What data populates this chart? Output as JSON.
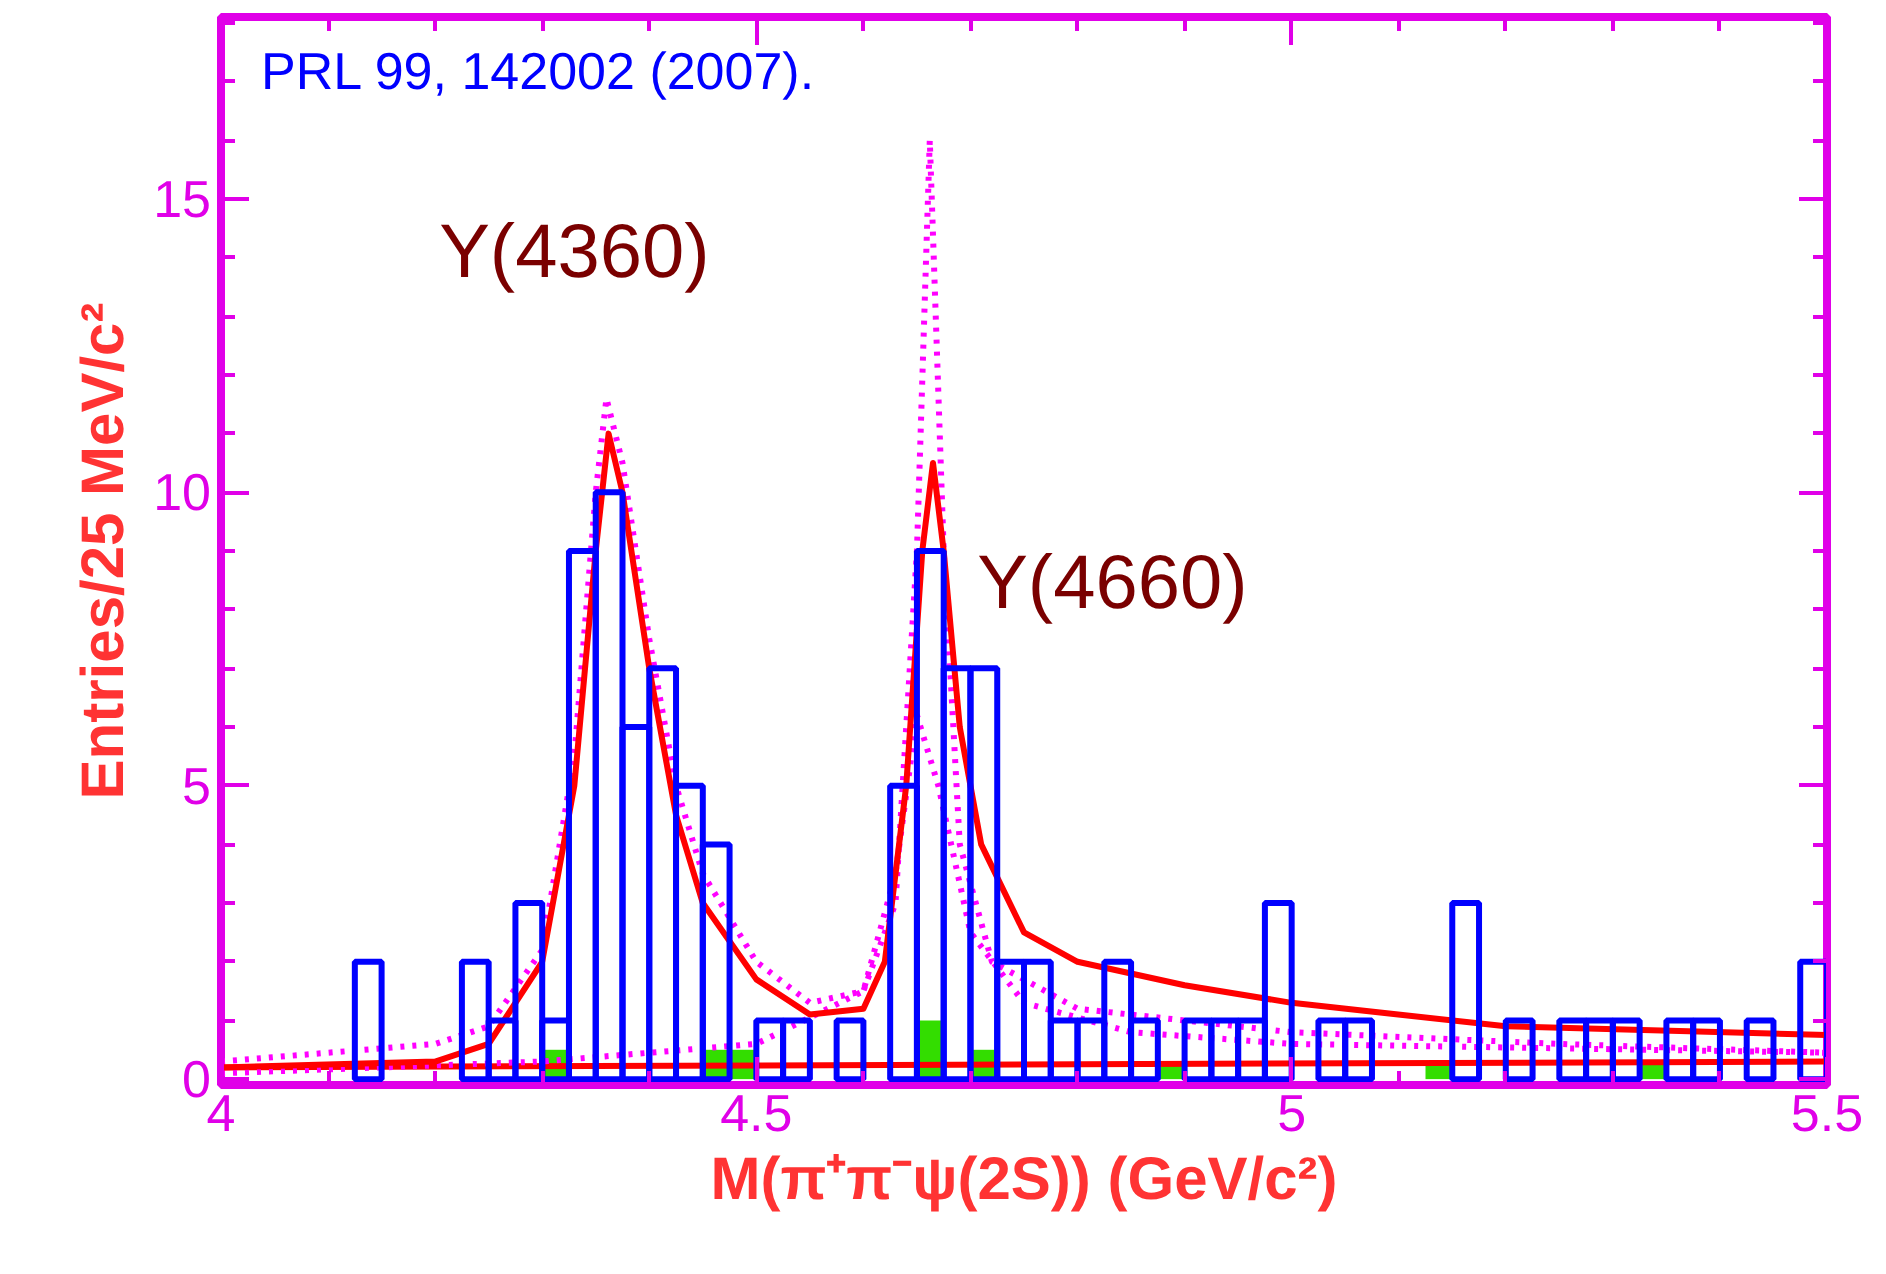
{
  "chart_data": {
    "type": "histogram",
    "xlabel": "M(π⁺π⁻ψ(2S)) (GeV/c²)",
    "ylabel": "Entries/25 MeV/c²",
    "bins": [
      4.0,
      4.025,
      4.05,
      4.075,
      4.1,
      4.125,
      4.15,
      4.175,
      4.2,
      4.225,
      4.25,
      4.275,
      4.3,
      4.325,
      4.35,
      4.375,
      4.4,
      4.425,
      4.45,
      4.475,
      4.5,
      4.525,
      4.55,
      4.575,
      4.6,
      4.625,
      4.65,
      4.675,
      4.7,
      4.725,
      4.75,
      4.775,
      4.8,
      4.825,
      4.85,
      4.875,
      4.9,
      4.925,
      4.95,
      4.975,
      5.0,
      5.025,
      5.05,
      5.075,
      5.1,
      5.125,
      5.15,
      5.175,
      5.2,
      5.225,
      5.25,
      5.275,
      5.3,
      5.325,
      5.35,
      5.375,
      5.4,
      5.425,
      5.45,
      5.475,
      5.5
    ],
    "series": [
      {
        "color": "#0000ff",
        "values": [
          0,
          0,
          0,
          0,
          0,
          2,
          0,
          0,
          0,
          2,
          1,
          3,
          1,
          9,
          10,
          6,
          7,
          5,
          4,
          0,
          1,
          1,
          0,
          1,
          0,
          5,
          9,
          7,
          7,
          2,
          2,
          1,
          1,
          2,
          1,
          0,
          1,
          1,
          1,
          3,
          0,
          1,
          1,
          0,
          0,
          0,
          3,
          0,
          1,
          0,
          1,
          1,
          1,
          0,
          1,
          1,
          0,
          1,
          0,
          2
        ]
      },
      {
        "color": "#33dd00",
        "values": [
          0,
          0,
          0,
          0,
          0,
          0,
          0,
          0,
          0,
          0,
          0,
          0,
          0.5,
          0,
          0,
          0,
          0,
          0,
          0.5,
          0.5,
          0,
          0,
          0,
          0,
          0,
          0,
          1,
          0,
          0.5,
          0,
          0,
          0,
          0,
          0,
          0,
          0.3,
          0,
          null,
          null,
          0,
          0,
          0,
          0,
          0,
          0,
          0.3,
          0,
          0,
          null,
          0,
          0,
          0,
          null,
          0.3,
          0,
          0,
          0,
          0,
          0,
          0
        ]
      },
      {
        "type": "line",
        "color": "#ff0000",
        "line_style": "solid",
        "x": [
          4.0,
          4.0001,
          5.5
        ],
        "values": [
          0.2,
          0.2,
          0.3
        ]
      },
      {
        "type": "line",
        "color": "#ff00ff",
        "line_style": "dotted",
        "x": [
          4.0,
          4.2,
          4.25,
          4.3,
          4.33,
          4.35,
          4.36,
          4.375,
          4.4,
          4.425,
          4.45,
          4.5,
          4.55,
          4.6,
          4.63,
          4.65,
          4.662,
          4.675,
          4.69,
          4.72,
          4.8,
          5.0,
          5.25,
          5.5
        ],
        "values": [
          0.3,
          0.6,
          0.9,
          2.2,
          5.5,
          10,
          11.6,
          10.5,
          7.5,
          5,
          3.5,
          2,
          1.3,
          1.5,
          3,
          9,
          16,
          9,
          4,
          2,
          1.2,
          0.8,
          0.6,
          0.45
        ]
      },
      {
        "type": "line",
        "color": "#ff00ff",
        "line_style": "dotted",
        "x": [
          4.0,
          4.3,
          4.5,
          4.6,
          4.63,
          4.65,
          4.67,
          4.7,
          4.75,
          4.85,
          5.0,
          5.5
        ],
        "values": [
          0.1,
          0.3,
          0.6,
          1.5,
          3.5,
          6.2,
          5,
          2.5,
          1.3,
          0.8,
          0.6,
          0.45
        ]
      },
      {
        "type": "line",
        "color": "#ff0000",
        "line_style": "solid",
        "x": [
          4.0,
          4.2,
          4.25,
          4.3,
          4.33,
          4.35,
          4.362,
          4.375,
          4.4,
          4.425,
          4.45,
          4.5,
          4.55,
          4.6,
          4.62,
          4.64,
          4.655,
          4.665,
          4.675,
          4.69,
          4.71,
          4.75,
          4.8,
          4.9,
          5.0,
          5.2,
          5.5
        ],
        "values": [
          0.2,
          0.3,
          0.6,
          2,
          5,
          9,
          11,
          10,
          7,
          4.5,
          3,
          1.7,
          1.1,
          1.2,
          2,
          5,
          9,
          10.5,
          9,
          6,
          4,
          2.5,
          2,
          1.6,
          1.3,
          0.9,
          0.75
        ]
      }
    ],
    "xlim": [
      4.0,
      5.5
    ],
    "ylim": [
      -0.1,
      18.1
    ],
    "xticks": [
      4,
      4.5,
      5,
      5.5
    ],
    "yticks": [
      0,
      5,
      10,
      15
    ],
    "grid": false,
    "annotations": [
      "PRL 99, 142002 (2007).",
      "Y(4360)",
      "Y(4660)"
    ]
  }
}
